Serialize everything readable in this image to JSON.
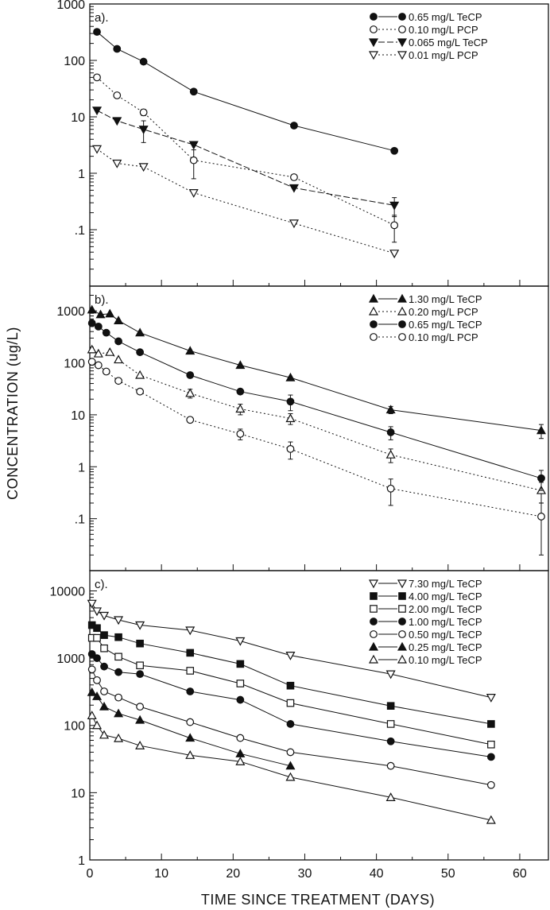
{
  "figure": {
    "ylabel": "CONCENTRATION (ug/L)",
    "xlabel": "TIME SINCE TREATMENT (DAYS)",
    "x_ticks": [
      "0",
      "10",
      "20",
      "30",
      "40",
      "50",
      "60"
    ]
  },
  "chart_data": [
    {
      "type": "line",
      "panel": "a).",
      "yscale": "log",
      "xlim": [
        0,
        64
      ],
      "ylim": [
        0.01,
        1000
      ],
      "y_ticks": [
        "1000",
        "100",
        "10",
        "1",
        ".1"
      ],
      "y_tick_values": [
        1000,
        100,
        10,
        1,
        0.1
      ],
      "legend_position": "top-right",
      "series": [
        {
          "name": "0.65 mg/L TeCP",
          "marker": "circle-filled",
          "dash": "solid",
          "x": [
            1,
            3.8,
            7.5,
            14.5,
            28.5,
            42.5
          ],
          "y": [
            320,
            160,
            95,
            28,
            7,
            2.5
          ],
          "err": [
            0,
            0,
            0,
            0,
            0,
            0
          ]
        },
        {
          "name": "0.10 mg/L PCP",
          "marker": "circle-open",
          "dash": "dotted",
          "x": [
            1,
            3.8,
            7.5,
            14.5,
            28.5,
            42.5
          ],
          "y": [
            50,
            24,
            12,
            1.7,
            0.85,
            0.12
          ],
          "err": [
            0,
            0,
            1.5,
            0.9,
            0,
            0.06
          ]
        },
        {
          "name": "0.065 mg/L TeCP",
          "marker": "triangle-down-filled",
          "dash": "dashed",
          "x": [
            1,
            3.8,
            7.5,
            14.5,
            28.5,
            42.5
          ],
          "y": [
            13,
            8.5,
            6,
            3.2,
            0.55,
            0.27
          ],
          "err": [
            0,
            0,
            2.5,
            0,
            0,
            0.1
          ]
        },
        {
          "name": "0.01 mg/L PCP",
          "marker": "triangle-down-open",
          "dash": "dotted",
          "x": [
            1,
            3.8,
            7.5,
            14.5,
            28.5,
            42.5
          ],
          "y": [
            2.7,
            1.5,
            1.3,
            0.45,
            0.13,
            0.038
          ],
          "err": [
            0,
            0,
            0,
            0,
            0,
            0
          ]
        }
      ]
    },
    {
      "type": "line",
      "panel": "b).",
      "yscale": "log",
      "xlim": [
        0,
        64
      ],
      "ylim": [
        0.01,
        3000
      ],
      "y_ticks": [
        "1000",
        "100",
        "10",
        "1",
        ".1"
      ],
      "y_tick_values": [
        1000,
        100,
        10,
        1,
        0.1
      ],
      "legend_position": "top-right",
      "series": [
        {
          "name": "1.30 mg/L TeCP",
          "marker": "triangle-up-filled",
          "dash": "solid",
          "x": [
            0.3,
            1.5,
            2.8,
            4,
            7,
            14,
            21,
            28,
            42,
            63
          ],
          "y": [
            1050,
            850,
            880,
            650,
            380,
            170,
            90,
            52,
            12.5,
            5
          ],
          "err": [
            0,
            0,
            0,
            0,
            0,
            0,
            0,
            0,
            2,
            1.5
          ]
        },
        {
          "name": "0.20 mg/L PCP",
          "marker": "triangle-up-open",
          "dash": "dotted",
          "x": [
            0.3,
            1.2,
            2.8,
            4,
            7,
            14,
            21,
            28,
            42,
            63
          ],
          "y": [
            180,
            150,
            160,
            115,
            58,
            26,
            13,
            8.5,
            1.7,
            0.35
          ],
          "err": [
            0,
            0,
            0,
            0,
            0,
            5,
            3,
            2,
            0.5,
            0.15
          ]
        },
        {
          "name": "0.65 mg/L TeCP",
          "marker": "circle-filled",
          "dash": "solid",
          "x": [
            0.3,
            1.2,
            2.3,
            4,
            7,
            14,
            21,
            28,
            42,
            63
          ],
          "y": [
            580,
            500,
            380,
            260,
            160,
            58,
            28,
            18,
            4.6,
            0.6
          ],
          "err": [
            0,
            0,
            0,
            0,
            0,
            0,
            0,
            6,
            1.3,
            0.25
          ]
        },
        {
          "name": "0.10 mg/L PCP",
          "marker": "circle-open",
          "dash": "dotted",
          "x": [
            0.3,
            1.2,
            2.3,
            4,
            7,
            14,
            21,
            28,
            42,
            63
          ],
          "y": [
            105,
            90,
            68,
            45,
            28,
            8,
            4.3,
            2.2,
            0.38,
            0.11
          ],
          "err": [
            0,
            0,
            0,
            0,
            0,
            0,
            1,
            0.8,
            0.2,
            0.09
          ]
        }
      ]
    },
    {
      "type": "line",
      "panel": "c).",
      "yscale": "log",
      "xlim": [
        0,
        64
      ],
      "ylim": [
        1,
        20000
      ],
      "y_ticks": [
        "10000",
        "1000",
        "100",
        "10",
        "1"
      ],
      "y_tick_values": [
        10000,
        1000,
        100,
        10,
        1
      ],
      "legend_position": "top-right",
      "series": [
        {
          "name": "7.30 mg/L TeCP",
          "marker": "triangle-down-open",
          "dash": "solid",
          "x": [
            0.3,
            1,
            2,
            4,
            7,
            14,
            21,
            28,
            42,
            56
          ],
          "y": [
            6500,
            5000,
            4300,
            3700,
            3100,
            2600,
            1800,
            1100,
            580,
            260
          ],
          "err": [
            0,
            0,
            0,
            0,
            0,
            0,
            0,
            0,
            0,
            0
          ]
        },
        {
          "name": "4.00 mg/L TeCP",
          "marker": "square-filled",
          "dash": "solid",
          "x": [
            0.3,
            1,
            2,
            4,
            7,
            14,
            21,
            28,
            42,
            56
          ],
          "y": [
            3100,
            2800,
            2200,
            2050,
            1650,
            1200,
            820,
            390,
            195,
            105
          ],
          "err": [
            0,
            0,
            0,
            0,
            0,
            0,
            0,
            0,
            0,
            0
          ]
        },
        {
          "name": "2.00 mg/L TeCP",
          "marker": "square-open",
          "dash": "solid",
          "x": [
            0.3,
            1,
            2,
            4,
            7,
            14,
            21,
            28,
            42,
            56
          ],
          "y": [
            2000,
            2000,
            1400,
            1050,
            780,
            650,
            420,
            215,
            105,
            52
          ],
          "err": [
            0,
            0,
            0,
            0,
            0,
            0,
            0,
            0,
            0,
            0
          ]
        },
        {
          "name": "1.00 mg/L TeCP",
          "marker": "circle-filled",
          "dash": "solid",
          "x": [
            0.3,
            1,
            2,
            4,
            7,
            14,
            21,
            28,
            42,
            56
          ],
          "y": [
            1150,
            1000,
            750,
            620,
            580,
            320,
            240,
            105,
            58,
            34
          ],
          "err": [
            0,
            0,
            0,
            0,
            0,
            0,
            0,
            0,
            0,
            0
          ]
        },
        {
          "name": "0.50 mg/L TeCP",
          "marker": "circle-open",
          "dash": "solid",
          "x": [
            0.3,
            1,
            2,
            4,
            7,
            14,
            21,
            28,
            42,
            56
          ],
          "y": [
            680,
            470,
            320,
            260,
            190,
            112,
            65,
            40,
            25,
            13
          ],
          "err": [
            0,
            0,
            0,
            0,
            0,
            0,
            0,
            0,
            0,
            0
          ]
        },
        {
          "name": "0.25 mg/L TeCP",
          "marker": "triangle-up-filled",
          "dash": "solid",
          "x": [
            0.3,
            1,
            2,
            4,
            7,
            14,
            21,
            28
          ],
          "y": [
            310,
            270,
            190,
            150,
            120,
            65,
            38,
            25
          ],
          "err": [
            0,
            0,
            0,
            0,
            0,
            0,
            0,
            0
          ]
        },
        {
          "name": "0.10 mg/L TeCP",
          "marker": "triangle-up-open",
          "dash": "solid",
          "x": [
            0.3,
            1,
            2,
            4,
            7,
            14,
            21,
            28,
            42,
            56
          ],
          "y": [
            140,
            100,
            72,
            64,
            50,
            36,
            29,
            17,
            8.5,
            3.9
          ],
          "err": [
            0,
            0,
            0,
            0,
            0,
            0,
            0,
            0,
            0,
            0
          ]
        }
      ]
    }
  ]
}
